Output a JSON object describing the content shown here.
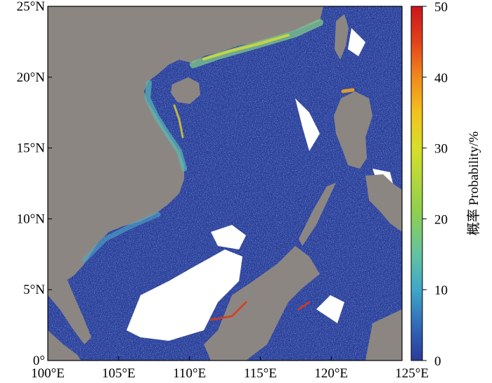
{
  "map": {
    "region": "South China Sea",
    "lon_range": [
      100,
      125
    ],
    "lat_range": [
      0,
      25
    ],
    "x_ticks": [
      "100°E",
      "105°E",
      "110°E",
      "115°E",
      "120°E",
      "125°E"
    ],
    "y_ticks": [
      "0°",
      "5°N",
      "10°N",
      "15°N",
      "20°N",
      "25°N"
    ],
    "land_color": "#8c8682",
    "nodata_color": "#ffffff"
  },
  "colorbar": {
    "title": "概率 Probability/%",
    "range": [
      0,
      50
    ],
    "ticks": [
      "0",
      "10",
      "20",
      "30",
      "40",
      "50"
    ],
    "colors": [
      "#2b3b98",
      "#2f5fb4",
      "#3fa7c8",
      "#63c3a0",
      "#8fcf4e",
      "#d6df2a",
      "#f2c21f",
      "#f08a1c",
      "#e2421b",
      "#c9151c"
    ]
  }
}
